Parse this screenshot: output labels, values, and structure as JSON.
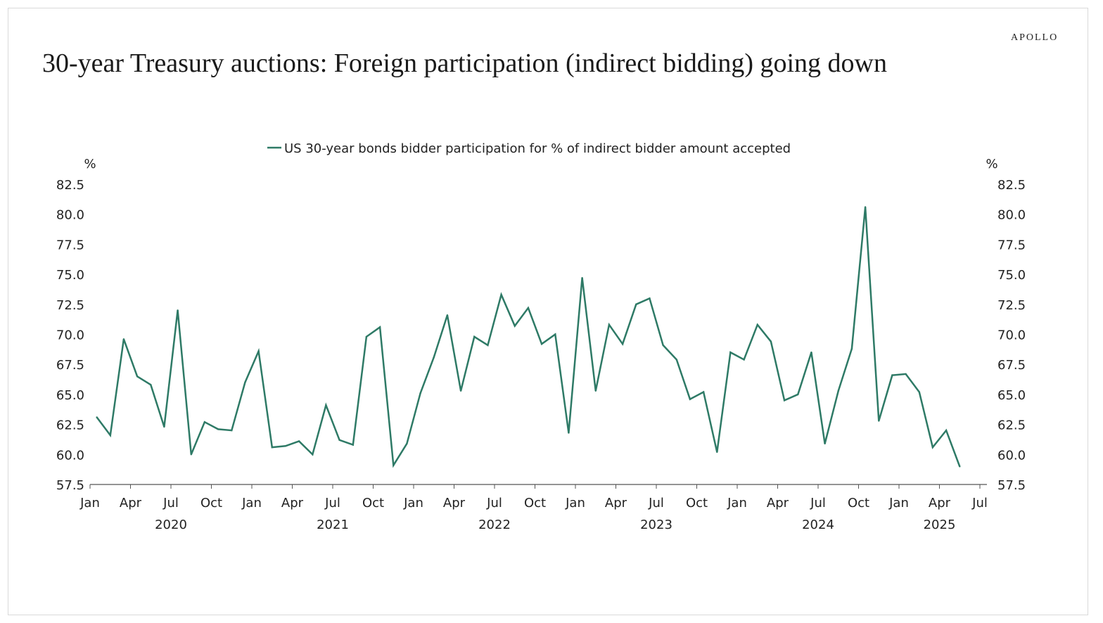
{
  "brand": "APOLLO",
  "title": "30-year Treasury auctions: Foreign participation (indirect bidding) going down",
  "colors": {
    "series": "#2e7a66",
    "axis": "#555555",
    "text": "#222222"
  },
  "chart_data": {
    "type": "line",
    "legend": {
      "position": "top-center",
      "entries": [
        "US 30-year bonds bidder participation for % of indirect bidder amount accepted"
      ]
    },
    "ylabel_left": "%",
    "ylabel_right": "%",
    "ylim": [
      57.5,
      82.5
    ],
    "xlim": [
      "2020-01",
      "2025-07"
    ],
    "yticks": [
      "57.5",
      "60.0",
      "62.5",
      "65.0",
      "67.5",
      "70.0",
      "72.5",
      "75.0",
      "77.5",
      "80.0",
      "82.5"
    ],
    "x_month_ticks": [
      "Jan",
      "Apr",
      "Jul",
      "Oct",
      "Jan",
      "Apr",
      "Jul",
      "Oct",
      "Jan",
      "Apr",
      "Jul",
      "Oct",
      "Jan",
      "Apr",
      "Jul",
      "Oct",
      "Jan",
      "Apr",
      "Jul",
      "Oct",
      "Jan",
      "Apr",
      "Jul"
    ],
    "x_year_labels": [
      "2020",
      "2021",
      "2022",
      "2023",
      "2024",
      "2025"
    ],
    "grid": false,
    "series": [
      {
        "name": "US 30-year bonds bidder participation for % of indirect bidder amount accepted",
        "x": [
          "2020-01",
          "2020-02",
          "2020-03",
          "2020-04",
          "2020-05",
          "2020-06",
          "2020-07",
          "2020-08",
          "2020-09",
          "2020-10",
          "2020-11",
          "2020-12",
          "2021-01",
          "2021-02",
          "2021-03",
          "2021-04",
          "2021-05",
          "2021-06",
          "2021-07",
          "2021-08",
          "2021-09",
          "2021-10",
          "2021-11",
          "2021-12",
          "2022-01",
          "2022-02",
          "2022-03",
          "2022-04",
          "2022-05",
          "2022-06",
          "2022-07",
          "2022-08",
          "2022-09",
          "2022-10",
          "2022-11",
          "2022-12",
          "2023-01",
          "2023-02",
          "2023-03",
          "2023-04",
          "2023-05",
          "2023-06",
          "2023-07",
          "2023-08",
          "2023-09",
          "2023-10",
          "2023-11",
          "2023-12",
          "2024-01",
          "2024-02",
          "2024-03",
          "2024-04",
          "2024-05",
          "2024-06",
          "2024-07",
          "2024-08",
          "2024-09",
          "2024-10",
          "2024-11",
          "2024-12",
          "2025-01",
          "2025-02",
          "2025-03",
          "2025-04",
          "2025-05"
        ],
        "values": [
          63.1,
          61.6,
          69.6,
          66.5,
          65.8,
          62.3,
          72.0,
          60.0,
          62.7,
          62.1,
          62.0,
          66.0,
          68.6,
          60.6,
          60.7,
          61.1,
          60.0,
          64.1,
          61.2,
          60.8,
          69.8,
          70.6,
          59.1,
          60.9,
          65.1,
          68.1,
          71.6,
          65.3,
          69.8,
          69.1,
          73.3,
          70.7,
          72.2,
          69.2,
          70.0,
          61.8,
          74.7,
          65.3,
          70.8,
          69.2,
          72.5,
          73.0,
          69.1,
          67.9,
          64.6,
          65.2,
          60.2,
          68.5,
          67.9,
          70.8,
          69.4,
          64.5,
          65.0,
          68.5,
          60.9,
          65.3,
          68.8,
          80.6,
          62.8,
          66.6,
          66.7,
          65.2,
          60.6,
          62.0,
          59.0
        ]
      }
    ]
  }
}
